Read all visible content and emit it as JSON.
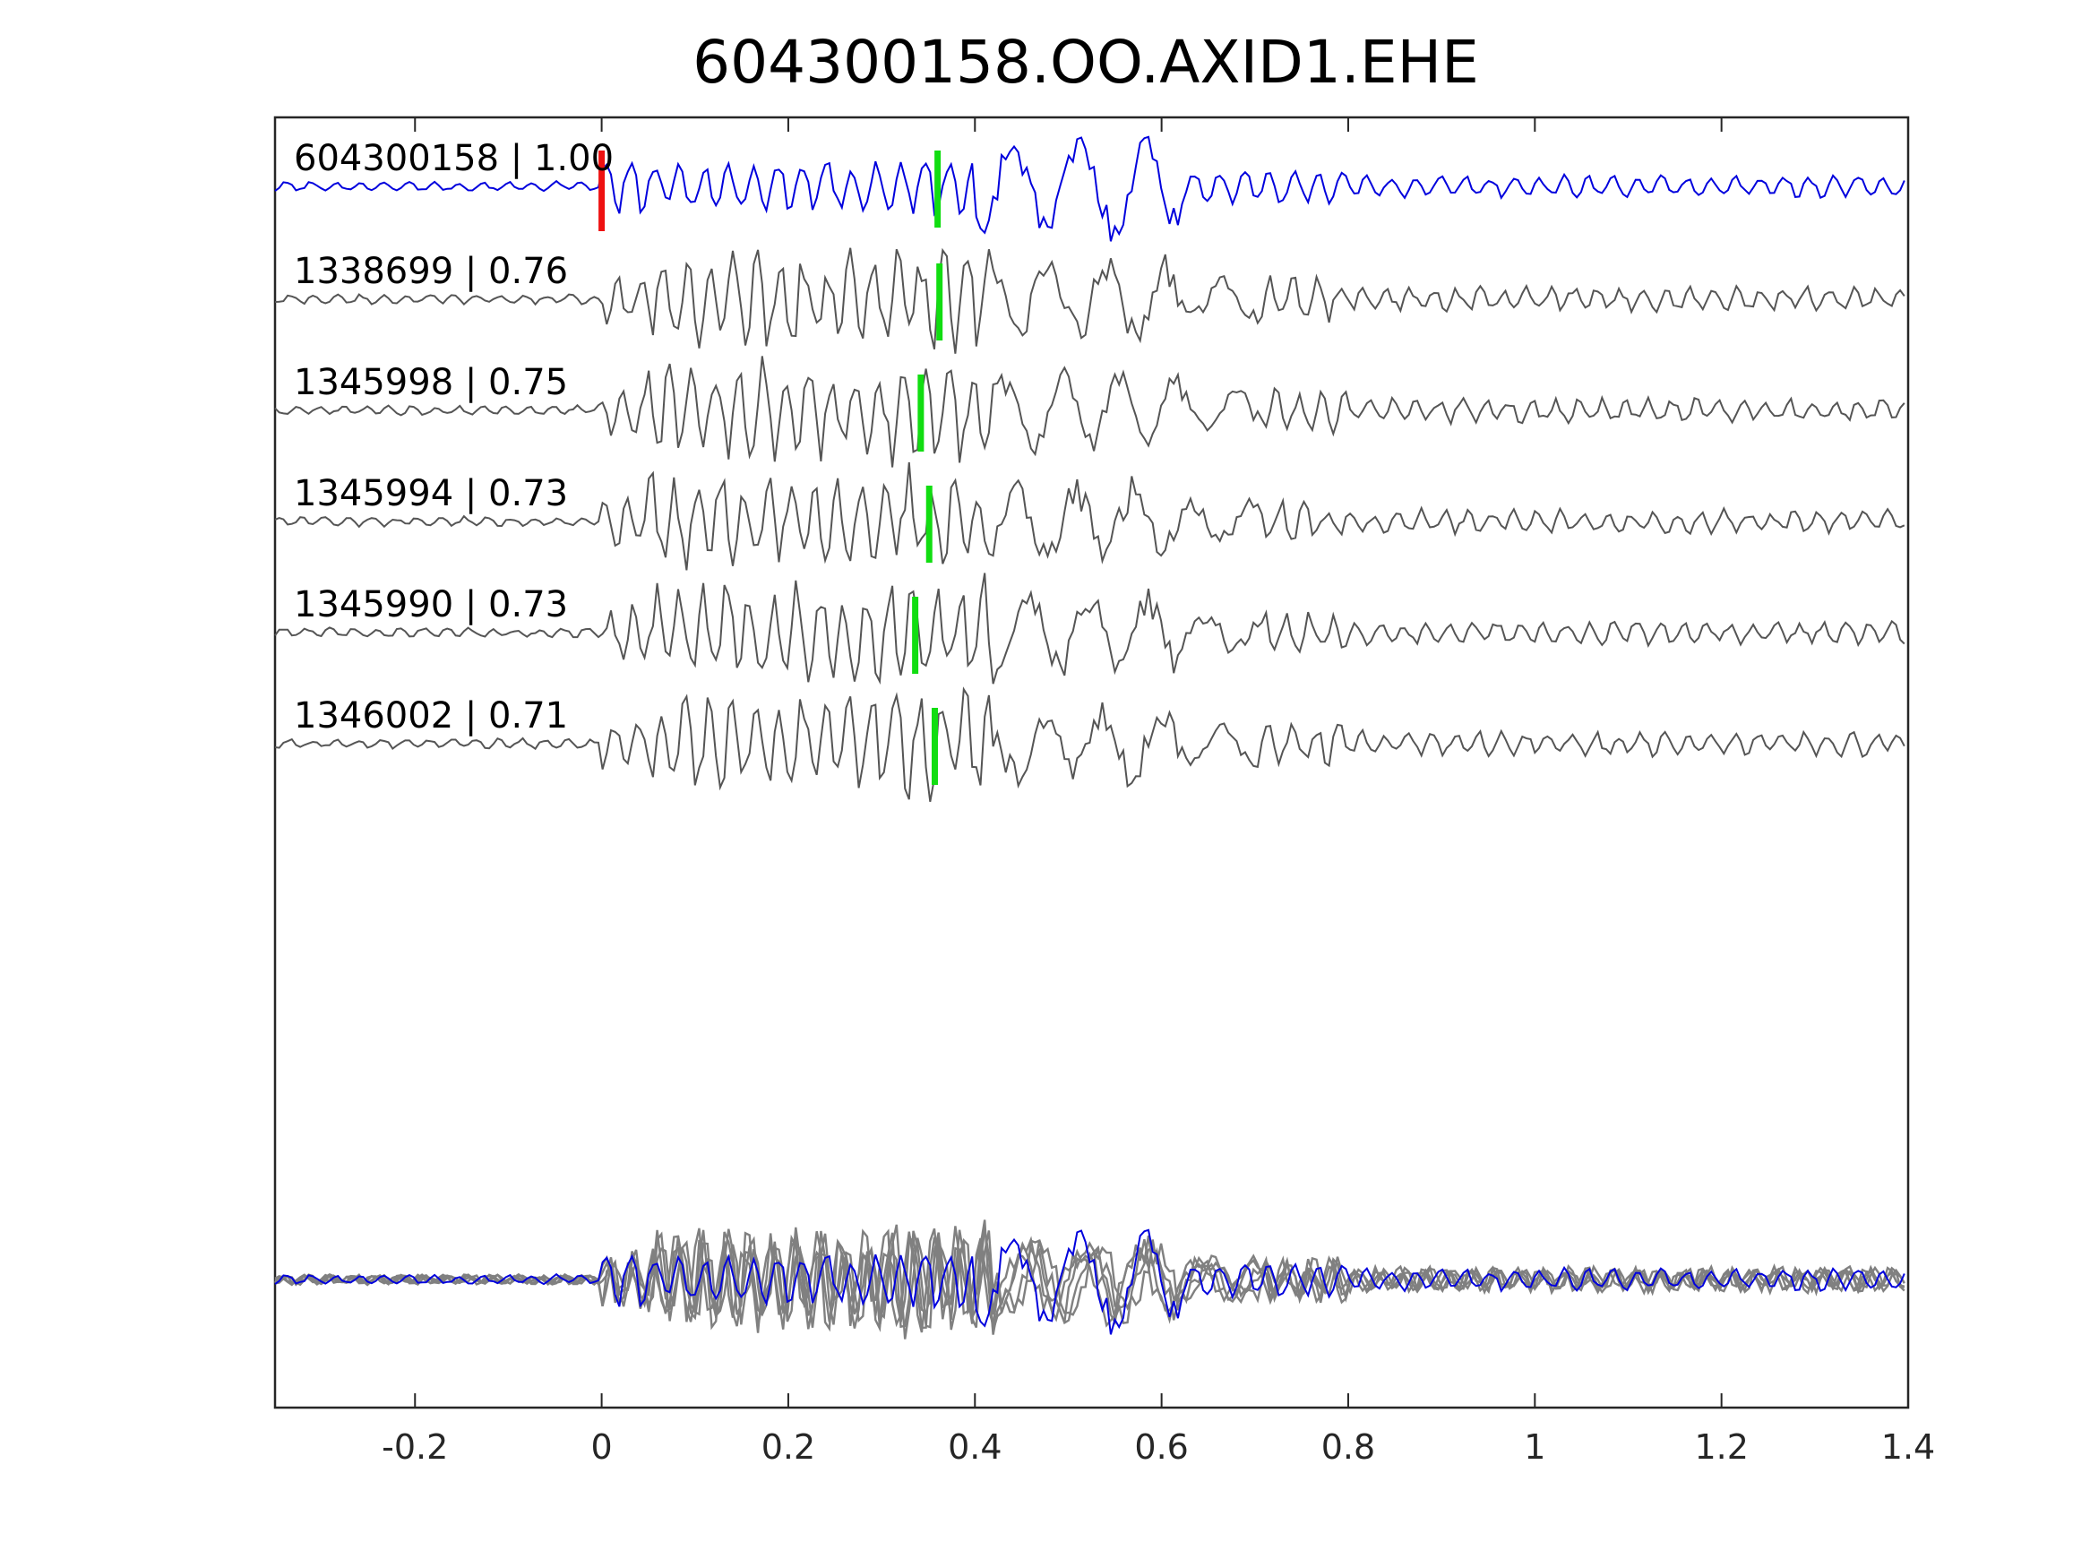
{
  "chart_data": {
    "type": "line",
    "title": "604300158.OO.AXID1.EHE",
    "xlim": [
      -0.35,
      1.4
    ],
    "x_ticks": [
      -0.2,
      0,
      0.2,
      0.4,
      0.6,
      0.8,
      1,
      1.2,
      1.4
    ],
    "x_tick_labels": [
      "-0.2",
      "0",
      "0.2",
      "0.4",
      "0.6",
      "0.8",
      "1",
      "1.2",
      "1.4"
    ],
    "ylabel": "",
    "xlabel": "",
    "grid": false,
    "colors": {
      "template": "#0000dd",
      "detection": "#555555",
      "overlay": "#808080",
      "p_pick": "#ee1111",
      "s_pick": "#11dd11"
    },
    "traces": [
      {
        "label": "604300158 | 1.00",
        "id": "604300158",
        "cc": 1.0,
        "color": "#0000dd",
        "s_pick": 0.36,
        "p_pick": 0.0
      },
      {
        "label": "1338699 | 0.76",
        "id": "1338699",
        "cc": 0.76,
        "color": "#555555",
        "s_pick": 0.362
      },
      {
        "label": "1345998 | 0.75",
        "id": "1345998",
        "cc": 0.75,
        "color": "#555555",
        "s_pick": 0.342
      },
      {
        "label": "1345994 | 0.73",
        "id": "1345994",
        "cc": 0.73,
        "color": "#555555",
        "s_pick": 0.351
      },
      {
        "label": "1345990 | 0.73",
        "id": "1345990",
        "cc": 0.73,
        "color": "#555555",
        "s_pick": 0.336
      },
      {
        "label": "1346002 | 0.71",
        "id": "1346002",
        "cc": 0.71,
        "color": "#555555",
        "s_pick": 0.357
      }
    ],
    "overlay": {
      "label": "stack",
      "count": 6
    }
  }
}
